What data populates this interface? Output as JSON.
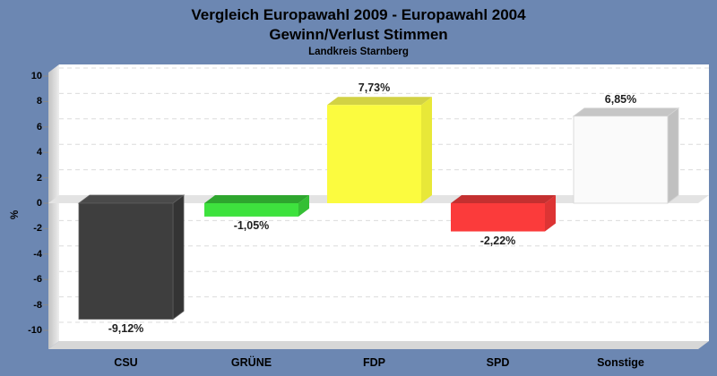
{
  "background_color": "#6C87B2",
  "chart_data": {
    "type": "bar",
    "title_lines": [
      "Vergleich Europawahl 2009 - Europawahl 2004",
      "Gewinn/Verlust Stimmen"
    ],
    "subtitle": "Landkreis Starnberg",
    "ylabel": "%",
    "ylim": [
      -10,
      10
    ],
    "ytick_step": 2,
    "yticks": [
      10,
      8,
      6,
      4,
      2,
      0,
      -2,
      -4,
      -6,
      -8,
      -10
    ],
    "ytick_labels": [
      "10",
      "8",
      "6",
      "4",
      "2",
      "0",
      "-2",
      "-4",
      "-6",
      "-8",
      "-10"
    ],
    "grid": "dashed-horizontal",
    "style": "3d-bars",
    "legend": "none",
    "categories": [
      "CSU",
      "GRÜNE",
      "FDP",
      "SPD",
      "Sonstige"
    ],
    "values": [
      -9.12,
      -1.05,
      7.73,
      -2.22,
      6.85
    ],
    "value_labels": [
      "-9,12%",
      "-1,05%",
      "7,73%",
      "-2,22%",
      "6,85%"
    ],
    "bar_colors": [
      {
        "party": "CSU",
        "front": "#3E3E3E",
        "top": "#4A4A4A",
        "side": "#343434",
        "edge": "#5E5E5E"
      },
      {
        "party": "GRÜNE",
        "front": "#3EE23E",
        "top": "#2EA62E",
        "side": "#35BF35",
        "edge": "none"
      },
      {
        "party": "FDP",
        "front": "#FBFB3F",
        "top": "#D2D244",
        "side": "#E8E838",
        "edge": "none"
      },
      {
        "party": "SPD",
        "front": "#FB3B3B",
        "top": "#C43030",
        "side": "#DD3434",
        "edge": "none"
      },
      {
        "party": "Sonstige",
        "front": "#FAFAFA",
        "top": "#C6C6C6",
        "side": "#C0C0C0",
        "edge": "#D4D4D4"
      }
    ],
    "plot_bg_color": "#FFFFFF",
    "zero_band_color": "#E3E3E3",
    "gridline_color": "#DCDCDC",
    "wall_color_dark": "#C2C2C2",
    "wall_color_light": "#EDEDED",
    "floor_color": "#D7D7D7"
  }
}
